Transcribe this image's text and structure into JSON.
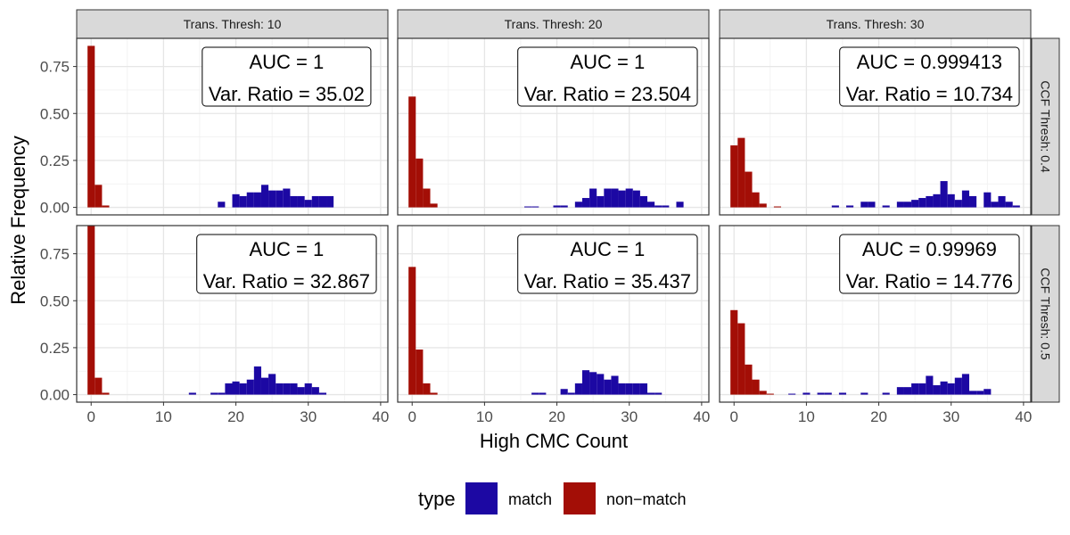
{
  "chart_data": {
    "type": "bar",
    "subtype": "faceted-histogram",
    "xlabel": "High CMC Count",
    "ylabel": "Relative Frequency",
    "xlim": [
      -2,
      41
    ],
    "ylim": [
      -0.04,
      0.9
    ],
    "x_ticks": [
      0,
      10,
      20,
      30,
      40
    ],
    "y_ticks": [
      0,
      0.25,
      0.5,
      0.75
    ],
    "y_tick_labels": [
      "0.00",
      "0.25",
      "0.50",
      "0.75"
    ],
    "bin_width": 1,
    "grid": true,
    "legend": {
      "title": "type",
      "position": "bottom",
      "entries": [
        {
          "name": "match",
          "color": "#1C08A3"
        },
        {
          "name": "non−match",
          "color": "#A30E06"
        }
      ]
    },
    "facets": {
      "columns": [
        "Trans. Thresh: 10",
        "Trans. Thresh: 20",
        "Trans. Thresh: 30"
      ],
      "rows": [
        "CCF Thresh: 0.4",
        "CCF Thresh: 0.5"
      ]
    },
    "panels": [
      {
        "row": 0,
        "col": 0,
        "label_lines": [
          "AUC = 1",
          "Var. Ratio = 35.02"
        ],
        "series": [
          {
            "name": "non−match",
            "x": [
              0,
              1,
              2
            ],
            "values": [
              0.86,
              0.12,
              0.01
            ]
          },
          {
            "name": "match",
            "x": [
              18,
              20,
              21,
              22,
              23,
              24,
              25,
              26,
              27,
              28,
              29,
              30,
              31,
              32,
              33
            ],
            "values": [
              0.03,
              0.07,
              0.06,
              0.08,
              0.08,
              0.12,
              0.09,
              0.09,
              0.1,
              0.06,
              0.06,
              0.04,
              0.06,
              0.06,
              0.06
            ]
          }
        ]
      },
      {
        "row": 0,
        "col": 1,
        "label_lines": [
          "AUC = 1",
          "Var. Ratio = 23.504"
        ],
        "series": [
          {
            "name": "non−match",
            "x": [
              0,
              1,
              2,
              3
            ],
            "values": [
              0.59,
              0.26,
              0.1,
              0.02
            ]
          },
          {
            "name": "match",
            "x": [
              16,
              17,
              20,
              21,
              23,
              24,
              25,
              26,
              27,
              28,
              29,
              30,
              31,
              32,
              33,
              34,
              35,
              37
            ],
            "values": [
              0.005,
              0.005,
              0.01,
              0.01,
              0.03,
              0.05,
              0.1,
              0.06,
              0.1,
              0.1,
              0.09,
              0.1,
              0.09,
              0.06,
              0.03,
              0.01,
              0.01,
              0.03
            ]
          }
        ]
      },
      {
        "row": 0,
        "col": 2,
        "label_lines": [
          "AUC = 0.999413",
          "Var. Ratio = 10.734"
        ],
        "series": [
          {
            "name": "non−match",
            "x": [
              0,
              1,
              2,
              3,
              4,
              6
            ],
            "values": [
              0.33,
              0.37,
              0.19,
              0.08,
              0.02,
              0.005
            ]
          },
          {
            "name": "match",
            "x": [
              14,
              16,
              18,
              19,
              21,
              23,
              24,
              25,
              26,
              27,
              28,
              29,
              30,
              31,
              32,
              33,
              35,
              36,
              37,
              38,
              39
            ],
            "values": [
              0.01,
              0.01,
              0.03,
              0.03,
              0.01,
              0.03,
              0.03,
              0.04,
              0.05,
              0.06,
              0.07,
              0.14,
              0.07,
              0.04,
              0.09,
              0.06,
              0.08,
              0.03,
              0.06,
              0.03,
              0.01
            ]
          }
        ]
      },
      {
        "row": 1,
        "col": 0,
        "label_lines": [
          "AUC = 1",
          "Var. Ratio = 32.867"
        ],
        "series": [
          {
            "name": "non−match",
            "x": [
              0,
              1,
              2
            ],
            "values": [
              0.9,
              0.09,
              0.01
            ]
          },
          {
            "name": "match",
            "x": [
              14,
              17,
              18,
              19,
              20,
              21,
              22,
              23,
              24,
              25,
              26,
              27,
              28,
              29,
              30,
              31,
              32
            ],
            "values": [
              0.01,
              0.01,
              0.01,
              0.06,
              0.07,
              0.06,
              0.08,
              0.15,
              0.09,
              0.11,
              0.06,
              0.06,
              0.06,
              0.04,
              0.06,
              0.04,
              0.01
            ]
          }
        ]
      },
      {
        "row": 1,
        "col": 1,
        "label_lines": [
          "AUC = 1",
          "Var. Ratio = 35.437"
        ],
        "series": [
          {
            "name": "non−match",
            "x": [
              0,
              1,
              2,
              3
            ],
            "values": [
              0.68,
              0.24,
              0.06,
              0.01
            ]
          },
          {
            "name": "match",
            "x": [
              17,
              18,
              21,
              22,
              23,
              24,
              25,
              26,
              27,
              28,
              29,
              30,
              31,
              32,
              33,
              34
            ],
            "values": [
              0.01,
              0.01,
              0.03,
              0.01,
              0.06,
              0.13,
              0.12,
              0.11,
              0.08,
              0.1,
              0.06,
              0.06,
              0.06,
              0.06,
              0.01,
              0.01
            ]
          }
        ]
      },
      {
        "row": 1,
        "col": 2,
        "label_lines": [
          "AUC = 0.99969",
          "Var. Ratio = 14.776"
        ],
        "series": [
          {
            "name": "non−match",
            "x": [
              0,
              1,
              2,
              3,
              4,
              5
            ],
            "values": [
              0.45,
              0.38,
              0.16,
              0.08,
              0.02,
              0.005
            ]
          },
          {
            "name": "match",
            "x": [
              8,
              10,
              12,
              13,
              15,
              18,
              21,
              23,
              24,
              25,
              26,
              27,
              28,
              29,
              30,
              31,
              32,
              33,
              34,
              35
            ],
            "values": [
              0.005,
              0.01,
              0.01,
              0.01,
              0.01,
              0.01,
              0.01,
              0.04,
              0.04,
              0.06,
              0.06,
              0.1,
              0.05,
              0.07,
              0.06,
              0.09,
              0.11,
              0.02,
              0.02,
              0.03
            ]
          }
        ]
      }
    ]
  }
}
